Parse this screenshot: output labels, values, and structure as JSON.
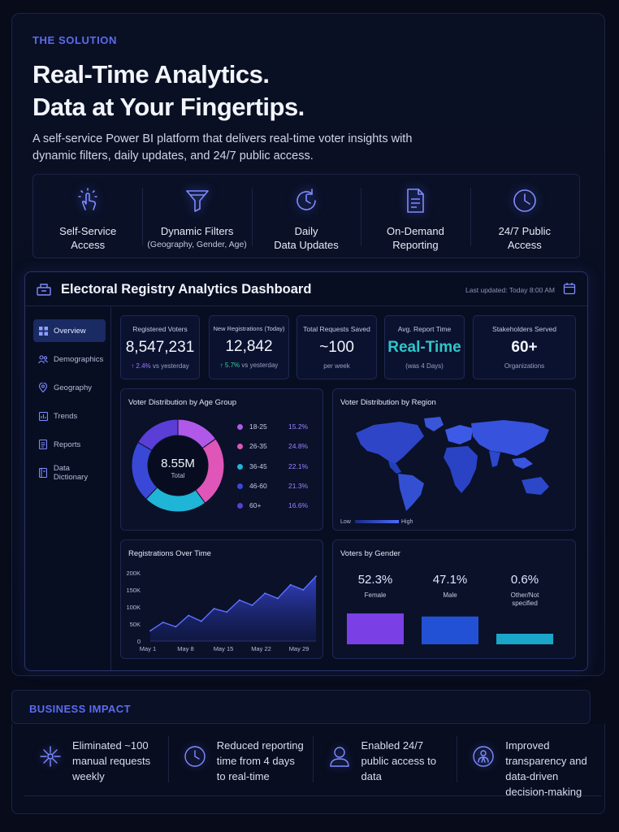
{
  "hero": {
    "eyebrow": "THE SOLUTION",
    "title_line1": "Real-Time Analytics.",
    "title_line2": "Data at Your Fingertips.",
    "subtitle": "A self-service Power BI platform that delivers real-time voter insights with dynamic filters, daily updates, and 24/7 public access."
  },
  "features": [
    {
      "icon": "hand-pointer-icon",
      "line1": "Self-Service",
      "line2": "Access"
    },
    {
      "icon": "funnel-icon",
      "line1": "Dynamic Filters",
      "line2": "(Geography, Gender, Age)"
    },
    {
      "icon": "clock-refresh-icon",
      "line1": "Daily",
      "line2": "Data Updates"
    },
    {
      "icon": "document-icon",
      "line1": "On-Demand",
      "line2": "Reporting"
    },
    {
      "icon": "clock-icon",
      "line1": "24/7 Public",
      "line2": "Access"
    }
  ],
  "dashboard": {
    "title": "Electoral Registry Analytics Dashboard",
    "last_updated": "Last updated: Today 8:00 AM",
    "nav": [
      "Overview",
      "Demographics",
      "Geography",
      "Trends",
      "Reports",
      "Data Dictionary"
    ],
    "kpis": [
      {
        "label": "Registered Voters",
        "value": "8,547,231",
        "arrow": "↑",
        "change": "2.4%",
        "sub": " vs yesterday"
      },
      {
        "label": "New Registrations (Today)",
        "value": "12,842",
        "arrow": "↑",
        "change": "5.7%",
        "sub": " vs yesterday"
      },
      {
        "label": "Total Requests Saved",
        "value": "~100",
        "sub": "per week"
      },
      {
        "label": "Avg. Report Time",
        "value": "Real-Time",
        "sub": "(was 4 Days)"
      },
      {
        "label": "Stakeholders Served",
        "value": "60+",
        "sub": "Organizations"
      }
    ],
    "age_card": {
      "title": "Voter Distribution by Age Group",
      "center_value": "8.55M",
      "center_label": "Total",
      "groups": [
        {
          "label": "18-25",
          "pct": "15.2%",
          "value": 15.2,
          "color": "#b058e8"
        },
        {
          "label": "26-35",
          "pct": "24.8%",
          "value": 24.8,
          "color": "#e055b8"
        },
        {
          "label": "36-45",
          "pct": "22.1%",
          "value": 22.1,
          "color": "#1fb5d6"
        },
        {
          "label": "46-60",
          "pct": "21.3%",
          "value": 21.3,
          "color": "#3a48d8"
        },
        {
          "label": "60+",
          "pct": "16.6%",
          "value": 16.6,
          "color": "#5a3ed6"
        }
      ]
    },
    "region_card": {
      "title": "Voter Distribution by Region",
      "legend_low": "Low",
      "legend_high": "High"
    },
    "time_card": {
      "title": "Registrations Over Time"
    },
    "gender_card": {
      "title": "Voters by Gender",
      "stats": [
        {
          "value": "52.3%",
          "label": "Female",
          "color": "#7b3fe6"
        },
        {
          "value": "47.1%",
          "label": "Male",
          "color": "#2251d6"
        },
        {
          "value": "0.6%",
          "label": "Other/Not specified",
          "color": "#1aa6c8"
        }
      ]
    }
  },
  "chart_data": [
    {
      "type": "pie",
      "title": "Voter Distribution by Age Group",
      "categories": [
        "18-25",
        "26-35",
        "36-45",
        "46-60",
        "60+"
      ],
      "values": [
        15.2,
        24.8,
        22.1,
        21.3,
        16.6
      ]
    },
    {
      "type": "area",
      "title": "Registrations Over Time",
      "x": [
        "May 1",
        "May 3",
        "May 5",
        "May 8",
        "May 10",
        "May 12",
        "May 15",
        "May 17",
        "May 19",
        "May 22",
        "May 24",
        "May 26",
        "May 29",
        "May 31"
      ],
      "y": [
        30000,
        55000,
        42000,
        75000,
        58000,
        95000,
        85000,
        120000,
        105000,
        140000,
        125000,
        165000,
        150000,
        190000
      ],
      "xticks": [
        "May 1",
        "May 8",
        "May 15",
        "May 22",
        "May 29"
      ],
      "yticks": [
        "0",
        "50K",
        "100K",
        "150K",
        "200K"
      ],
      "ylim": [
        0,
        200000
      ],
      "grid": false
    },
    {
      "type": "bar",
      "title": "Voters by Gender",
      "categories": [
        "Female",
        "Male",
        "Other/Not specified"
      ],
      "values": [
        52.3,
        47.1,
        0.6
      ]
    }
  ],
  "impact": {
    "title": "BUSINESS IMPACT",
    "items": [
      {
        "icon": "network-icon",
        "text": "Eliminated ~100 manual requests weekly"
      },
      {
        "icon": "clock-icon",
        "text": "Reduced reporting time from 4 days to real-time"
      },
      {
        "icon": "person-icon",
        "text": "Enabled 24/7 public access to data"
      },
      {
        "icon": "badge-person-icon",
        "text": "Improved transparency and data-driven decision-making"
      }
    ]
  }
}
